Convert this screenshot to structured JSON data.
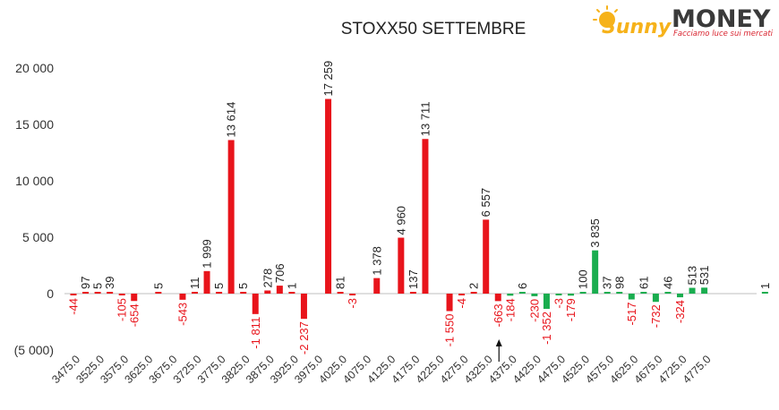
{
  "logo": {
    "brand_left": "Sunny",
    "brand_right": "MONEY",
    "tagline": "Facciamo luce sui mercati",
    "colors": {
      "sun": "#f6b21a",
      "text": "#3a3a3a",
      "tagline": "#d9242f"
    }
  },
  "chart_data": {
    "type": "bar",
    "title": "STOXX50 SETTEMBRE",
    "xlabel": "",
    "ylabel": "",
    "ylim": [
      -5000,
      20000
    ],
    "yticks": [
      20000,
      15000,
      10000,
      5000,
      0,
      -5000
    ],
    "ytick_labels": [
      "20 000",
      "15 000",
      "10 000",
      "5 000",
      "0",
      "(5 000)"
    ],
    "x_tick_labels": [
      "3475.0",
      "3525.0",
      "3575.0",
      "3625.0",
      "3675.0",
      "3725.0",
      "3775.0",
      "3825.0",
      "3875.0",
      "3925.0",
      "3975.0",
      "4025.0",
      "4075.0",
      "4125.0",
      "4175.0",
      "4225.0",
      "4275.0",
      "4325.0",
      "4375.0",
      "4425.0",
      "4475.0",
      "4525.0",
      "4575.0",
      "4625.0",
      "4675.0",
      "4725.0",
      "4775.0"
    ],
    "grid": false,
    "series_colors": {
      "red": "#e8141b",
      "green": "#1aad4f",
      "neg_label": "#e8141b",
      "pos_label": "#222222"
    },
    "current_price_marker_x": 4350,
    "bars": [
      {
        "x": 3475,
        "v": -44,
        "label": "-44",
        "color": "red"
      },
      {
        "x": 3500,
        "v": 97,
        "label": "97",
        "color": "red"
      },
      {
        "x": 3525,
        "v": 5,
        "label": "5",
        "color": "red"
      },
      {
        "x": 3550,
        "v": 39,
        "label": "39",
        "color": "red"
      },
      {
        "x": 3575,
        "v": -105,
        "label": "-105",
        "color": "red"
      },
      {
        "x": 3600,
        "v": -654,
        "label": "-654",
        "color": "red"
      },
      {
        "x": 3650,
        "v": 5,
        "label": "5",
        "color": "red"
      },
      {
        "x": 3700,
        "v": -543,
        "label": "-543",
        "color": "red"
      },
      {
        "x": 3725,
        "v": 11,
        "label": "11",
        "color": "red"
      },
      {
        "x": 3750,
        "v": 1999,
        "label": "1 999",
        "color": "red"
      },
      {
        "x": 3775,
        "v": 5,
        "label": "5",
        "color": "red"
      },
      {
        "x": 3800,
        "v": 13614,
        "label": "13 614",
        "color": "red"
      },
      {
        "x": 3825,
        "v": 5,
        "label": "5",
        "color": "red"
      },
      {
        "x": 3850,
        "v": -1811,
        "label": "-1 811",
        "color": "red"
      },
      {
        "x": 3875,
        "v": 278,
        "label": "278",
        "color": "red"
      },
      {
        "x": 3900,
        "v": 706,
        "label": "706",
        "color": "red"
      },
      {
        "x": 3925,
        "v": 1,
        "label": "1",
        "color": "red"
      },
      {
        "x": 3950,
        "v": -2237,
        "label": "-2 237",
        "color": "red"
      },
      {
        "x": 4000,
        "v": 17259,
        "label": "17 259",
        "color": "red"
      },
      {
        "x": 4025,
        "v": 81,
        "label": "81",
        "color": "red"
      },
      {
        "x": 4050,
        "v": -3,
        "label": "-3",
        "color": "red"
      },
      {
        "x": 4100,
        "v": 1378,
        "label": "1 378",
        "color": "red"
      },
      {
        "x": 4150,
        "v": 4960,
        "label": "4 960",
        "color": "red"
      },
      {
        "x": 4175,
        "v": 137,
        "label": "137",
        "color": "red"
      },
      {
        "x": 4200,
        "v": 13711,
        "label": "13 711",
        "color": "red"
      },
      {
        "x": 4250,
        "v": -1550,
        "label": "-1 550",
        "color": "red"
      },
      {
        "x": 4275,
        "v": -4,
        "label": "-4",
        "color": "red"
      },
      {
        "x": 4300,
        "v": 2,
        "label": "2",
        "color": "red"
      },
      {
        "x": 4325,
        "v": 6557,
        "label": "6 557",
        "color": "red"
      },
      {
        "x": 4350,
        "v": -663,
        "label": "-663",
        "color": "red"
      },
      {
        "x": 4375,
        "v": -184,
        "label": "-184",
        "color": "green"
      },
      {
        "x": 4400,
        "v": 6,
        "label": "6",
        "color": "green"
      },
      {
        "x": 4425,
        "v": -230,
        "label": "-230",
        "color": "green"
      },
      {
        "x": 4450,
        "v": -1352,
        "label": "-1 352",
        "color": "green"
      },
      {
        "x": 4475,
        "v": -3,
        "label": "-3",
        "color": "green"
      },
      {
        "x": 4500,
        "v": -179,
        "label": "-179",
        "color": "green"
      },
      {
        "x": 4525,
        "v": 100,
        "label": "100",
        "color": "green"
      },
      {
        "x": 4550,
        "v": 3835,
        "label": "3 835",
        "color": "green"
      },
      {
        "x": 4575,
        "v": 37,
        "label": "37",
        "color": "green"
      },
      {
        "x": 4600,
        "v": 98,
        "label": "98",
        "color": "green"
      },
      {
        "x": 4625,
        "v": -517,
        "label": "-517",
        "color": "green"
      },
      {
        "x": 4650,
        "v": 61,
        "label": "61",
        "color": "green"
      },
      {
        "x": 4675,
        "v": -732,
        "label": "-732",
        "color": "green"
      },
      {
        "x": 4700,
        "v": 46,
        "label": "46",
        "color": "green"
      },
      {
        "x": 4725,
        "v": -324,
        "label": "-324",
        "color": "green"
      },
      {
        "x": 4750,
        "v": 513,
        "label": "513",
        "color": "green"
      },
      {
        "x": 4775,
        "v": 531,
        "label": "531",
        "color": "green"
      },
      {
        "x": 4900,
        "v": 1,
        "label": "1",
        "color": "green"
      }
    ]
  }
}
